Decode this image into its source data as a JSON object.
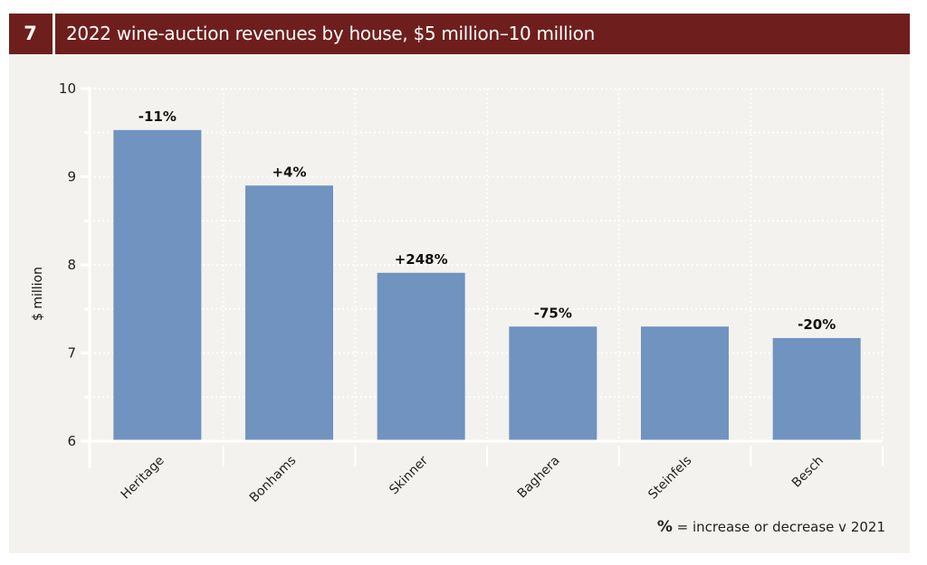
{
  "header": {
    "number": "7",
    "title": "2022 wine-auction revenues by house, $5 million–10 million"
  },
  "note": {
    "symbol": "%",
    "text": " = increase or decrease v 2021"
  },
  "colors": {
    "header_bg": "#6e1f1d",
    "panel_bg": "#f3f2ee",
    "bar": "#7093bf",
    "grid": "#ffffff"
  },
  "chart_data": {
    "type": "bar",
    "title": "2022 wine-auction revenues by house, $5 million–10 million",
    "xlabel": "",
    "ylabel": "$ million",
    "ylim": [
      6,
      10
    ],
    "yticks": [
      6,
      7,
      8,
      9,
      10
    ],
    "minor_gridlines": [
      6.5,
      7.5,
      8.5,
      9.5
    ],
    "grid": true,
    "categories": [
      "Heritage",
      "Bonhams",
      "Skinner",
      "Baghera",
      "Steinfels",
      "Besch"
    ],
    "values": [
      9.53,
      8.9,
      7.91,
      7.3,
      7.3,
      7.17
    ],
    "data_labels": [
      "-11%",
      "+4%",
      "+248%",
      "-75%",
      "",
      "-20%"
    ],
    "annotation": "% = increase or decrease v 2021"
  }
}
